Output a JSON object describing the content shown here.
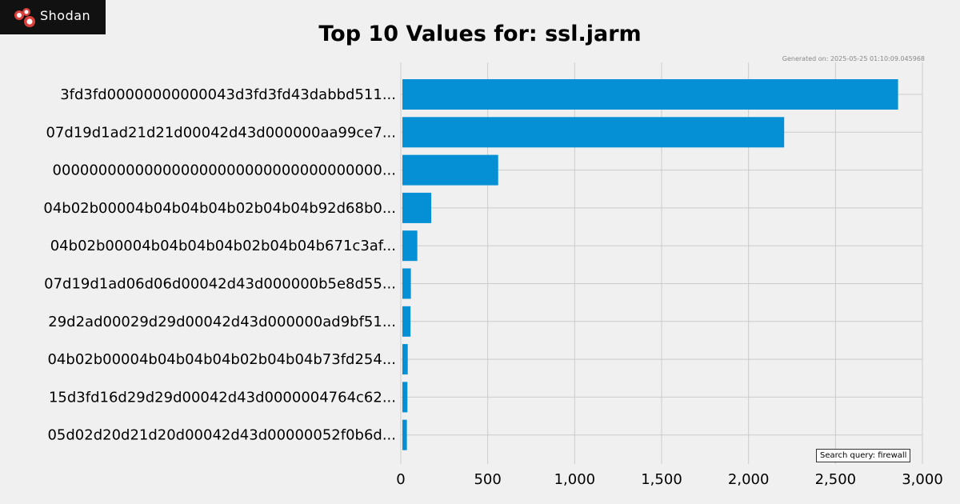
{
  "brand": {
    "name": "Shodan"
  },
  "header": {
    "title": "Top 10 Values for: ssl.jarm",
    "generated": "Generated on: 2025-05-25 01:10:09.045968"
  },
  "footer": {
    "query": "Search query: firewall"
  },
  "colors": {
    "bar": "#0590d6",
    "background": "#f0f0f0",
    "grid": "#cbcbcb",
    "logo_bg": "#111111",
    "logo_accent": "#d9413c"
  },
  "chart_data": {
    "type": "bar",
    "orientation": "horizontal",
    "title": "Top 10 Values for: ssl.jarm",
    "xlabel": "",
    "ylabel": "",
    "xlim": [
      0,
      3000
    ],
    "xticks": [
      0,
      500,
      1000,
      1500,
      2000,
      2500,
      3000
    ],
    "xtick_labels": [
      "0",
      "500",
      "1,000",
      "1,500",
      "2,000",
      "2,500",
      "3,000"
    ],
    "grid": true,
    "categories": [
      "3fd3fd00000000000043d3fd3fd43dabbd511...",
      "07d19d1ad21d21d00042d43d000000aa99ce7...",
      "000000000000000000000000000000000000...",
      "04b02b00004b04b04b04b02b04b04b92d68b0...",
      "04b02b00004b04b04b04b02b04b04b671c3af...",
      "07d19d1ad06d06d00042d43d000000b5e8d55...",
      "29d2ad00029d29d00042d43d000000ad9bf51...",
      "04b02b00004b04b04b04b02b04b04b73fd254...",
      "15d3fd16d29d29d00042d43d0000004764c62...",
      "05d02d20d21d20d00042d43d00000052f0b6d..."
    ],
    "values": [
      2860,
      2205,
      560,
      175,
      95,
      58,
      56,
      40,
      38,
      35
    ]
  }
}
